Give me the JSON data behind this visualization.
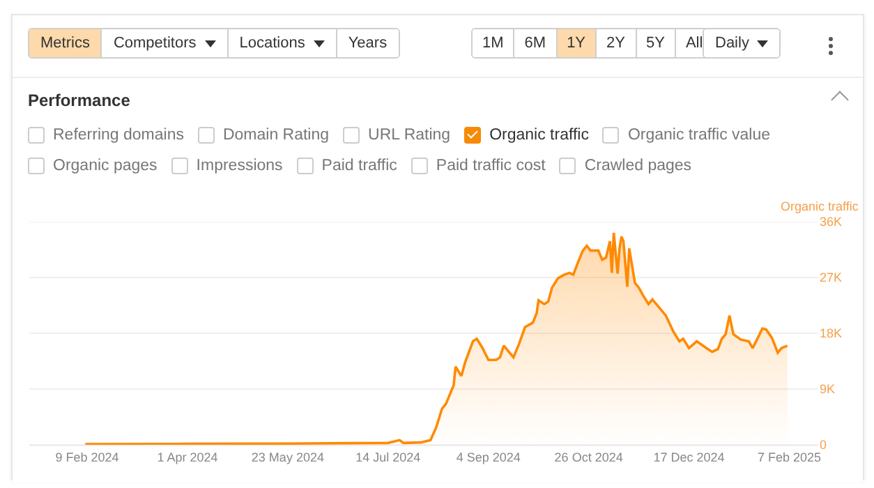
{
  "chart_data": {
    "type": "area",
    "title": "Performance",
    "ylabel": "Organic traffic",
    "annotations": [
      "Metrics",
      "Competitors",
      "Locations",
      "Years",
      "1M",
      "6M",
      "1Y",
      "2Y",
      "5Y",
      "All",
      "Daily",
      "Referring domains",
      "Domain Rating",
      "URL Rating",
      "Organic traffic",
      "Organic traffic value",
      "Organic pages",
      "Impressions",
      "Paid traffic",
      "Paid traffic cost",
      "Crawled pages"
    ],
    "x": [
      "2024-02-08",
      "2024-04-01",
      "2024-05-23",
      "2024-07-14",
      "2024-07-20",
      "2024-07-22",
      "2024-07-31",
      "2024-08-05",
      "2024-08-08",
      "2024-08-11",
      "2024-08-13",
      "2024-08-17",
      "2024-08-18",
      "2024-08-21",
      "2024-08-23",
      "2024-08-27",
      "2024-08-29",
      "2024-09-01",
      "2024-09-04",
      "2024-09-08",
      "2024-09-10",
      "2024-09-12",
      "2024-09-17",
      "2024-09-20",
      "2024-09-23",
      "2024-09-27",
      "2024-09-29",
      "2024-09-30",
      "2024-10-03",
      "2024-10-05",
      "2024-10-07",
      "2024-10-10",
      "2024-10-13",
      "2024-10-16",
      "2024-10-18",
      "2024-10-21",
      "2024-10-23",
      "2024-10-25",
      "2024-10-27",
      "2024-10-31",
      "2024-11-02",
      "2024-11-04",
      "2024-11-06",
      "2024-11-07",
      "2024-11-08",
      "2024-11-10",
      "2024-11-11",
      "2024-11-12",
      "2024-11-13",
      "2024-11-15",
      "2024-11-16",
      "2024-11-18",
      "2024-11-19",
      "2024-11-21",
      "2024-11-23",
      "2024-11-26",
      "2024-11-28",
      "2024-12-01",
      "2024-12-05",
      "2024-12-09",
      "2024-12-12",
      "2024-12-14",
      "2024-12-17",
      "2024-12-21",
      "2024-12-26",
      "2024-12-29",
      "2025-01-01",
      "2025-01-03",
      "2025-01-05",
      "2025-01-07",
      "2025-01-09",
      "2025-01-13",
      "2025-01-17",
      "2025-01-19",
      "2025-01-22",
      "2025-01-24",
      "2025-01-26",
      "2025-01-29",
      "2025-02-01",
      "2025-02-03",
      "2025-02-06"
    ],
    "series": [
      {
        "color": "#ff8a00",
        "values": [
          100,
          150,
          200,
          300,
          750,
          300,
          375,
          750,
          2850,
          5850,
          6600,
          9600,
          12600,
          11100,
          13350,
          16700,
          17100,
          15600,
          13700,
          13700,
          14100,
          16000,
          14100,
          16350,
          19000,
          19700,
          21200,
          23300,
          22700,
          23100,
          25350,
          26850,
          27400,
          27750,
          27450,
          29850,
          31350,
          32100,
          31350,
          31350,
          29850,
          30200,
          32850,
          27750,
          34200,
          27600,
          31700,
          33600,
          32850,
          25500,
          31700,
          27950,
          26100,
          25350,
          24200,
          22700,
          23450,
          22350,
          20850,
          18200,
          16700,
          17100,
          15600,
          16700,
          15600,
          15000,
          15450,
          17100,
          17850,
          20850,
          17850,
          16950,
          16700,
          15600,
          17450,
          18750,
          18600,
          17250,
          14850,
          15600,
          16000
        ]
      }
    ],
    "xlim": [
      "2024-01-10",
      "2025-02-22"
    ],
    "xticks": [
      {
        "value": "2024-02-09",
        "label": "9 Feb 2024"
      },
      {
        "value": "2024-04-01",
        "label": "1 Apr 2024"
      },
      {
        "value": "2024-05-23",
        "label": "23 May 2024"
      },
      {
        "value": "2024-07-14",
        "label": "14 Jul 2024"
      },
      {
        "value": "2024-09-04",
        "label": "4 Sep 2024"
      },
      {
        "value": "2024-10-26",
        "label": "26 Oct 2024"
      },
      {
        "value": "2024-12-17",
        "label": "17 Dec 2024"
      },
      {
        "value": "2025-02-07",
        "label": "7 Feb 2025"
      }
    ],
    "ylim": [
      0,
      36000
    ],
    "yticks": [
      0,
      {
        "value": 9000,
        "label": "9K"
      },
      {
        "value": 18000,
        "label": "18K"
      },
      {
        "value": 27000,
        "label": "27K"
      },
      {
        "value": 36000,
        "label": "36K"
      }
    ],
    "grid": "y",
    "marker": "none",
    "line_style": "solid"
  }
}
